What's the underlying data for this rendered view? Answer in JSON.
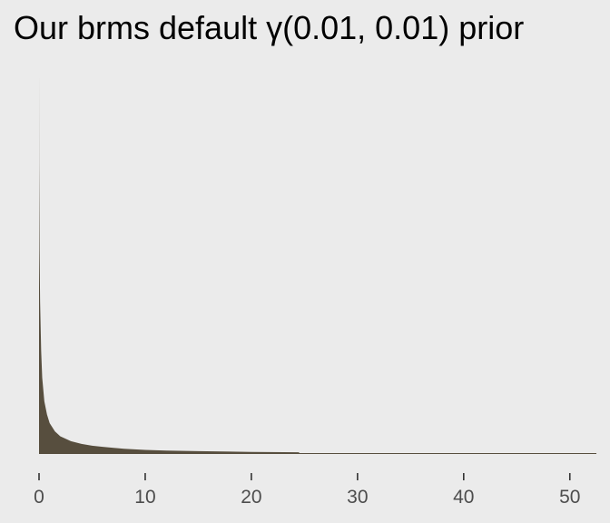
{
  "title": "Our brms default γ(0.01, 0.01) prior",
  "colors": {
    "background": "#ebebeb",
    "fill": "#574e3e",
    "tick": "#333333",
    "text": "#4d4d4d"
  },
  "chart_data": {
    "type": "area",
    "title": "Our brms default γ(0.01, 0.01) prior",
    "xlabel": "",
    "ylabel": "",
    "distribution": {
      "family": "gamma",
      "shape": 0.01,
      "rate": 0.01
    },
    "xlim": [
      0,
      52.5
    ],
    "x_ticks": [
      0,
      10,
      20,
      30,
      40,
      50
    ],
    "x_tick_labels": [
      "0",
      "10",
      "20",
      "30",
      "40",
      "50"
    ],
    "y_axis_shown": false,
    "grid": false,
    "legend": "none",
    "fill_until_x": 24.5,
    "curve": {
      "x": [
        0.0005,
        0.01,
        0.05,
        0.1,
        0.2,
        0.3,
        0.5,
        0.75,
        1,
        1.5,
        2,
        3,
        4,
        5,
        6,
        8,
        10,
        12,
        15,
        20,
        24.5,
        52.5
      ],
      "y": [
        1.0,
        0.772,
        0.542,
        0.404,
        0.274,
        0.203,
        0.14,
        0.105,
        0.082,
        0.06,
        0.047,
        0.034,
        0.027,
        0.022,
        0.019,
        0.014,
        0.011,
        0.009,
        0.0075,
        0.0055,
        0.0045,
        0.0
      ]
    }
  }
}
